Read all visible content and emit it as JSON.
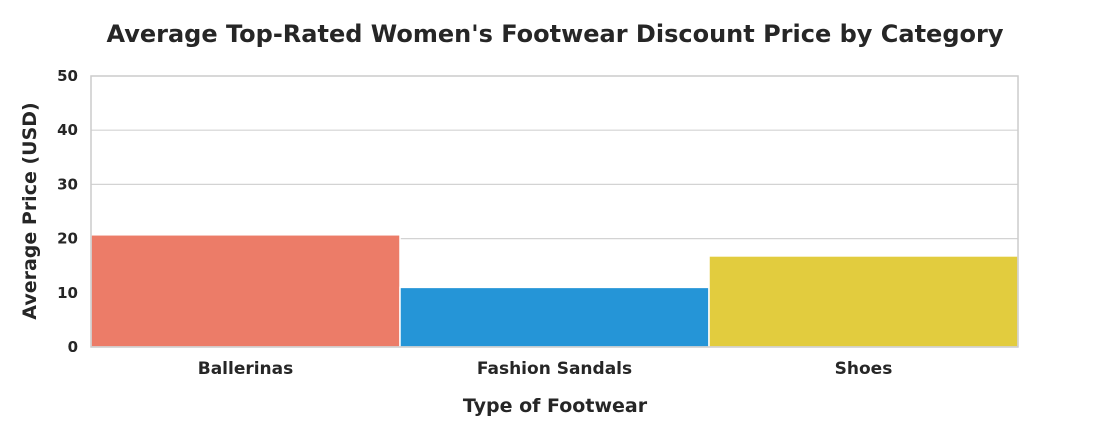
{
  "chart_data": {
    "type": "bar",
    "title": "Average Top-Rated Women's Footwear Discount Price by Category",
    "xlabel": "Type of Footwear",
    "ylabel": "Average Price (USD)",
    "categories": [
      "Ballerinas",
      "Fashion Sandals",
      "Shoes"
    ],
    "values": [
      20.7,
      11.0,
      16.8
    ],
    "colors": [
      "#ec7c68",
      "#2595d7",
      "#e2cc3e"
    ],
    "ylim": [
      0,
      50
    ],
    "yticks": [
      "0",
      "10",
      "20",
      "30",
      "40",
      "50"
    ],
    "grid": true,
    "legend": "none"
  }
}
